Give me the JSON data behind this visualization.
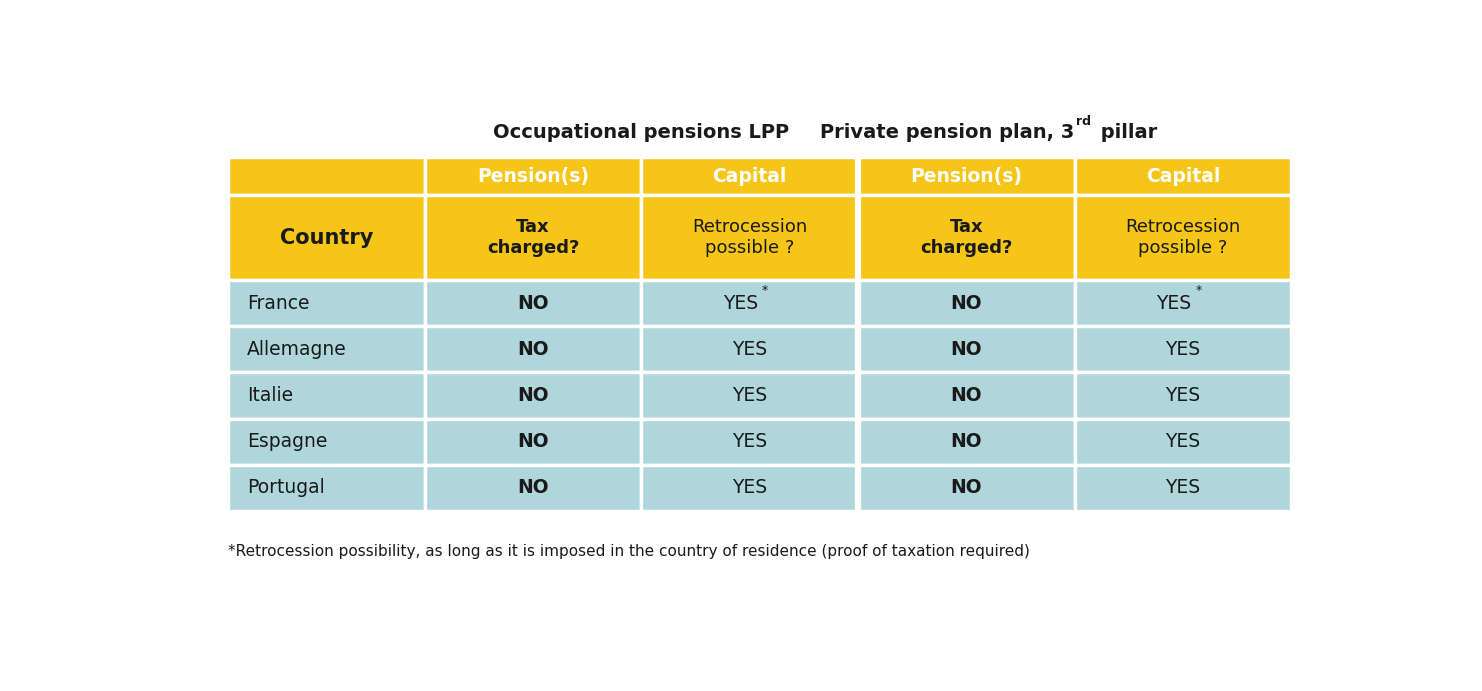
{
  "title_left": "Occupational pensions LPP",
  "title_right_base": "Private pension plan, 3",
  "title_right_sup": "rd",
  "title_right_end": " pillar",
  "col_headers": [
    "Pension(s)",
    "Capital",
    "Pension(s)",
    "Capital"
  ],
  "row_header_col0": "Country",
  "row_subheaders": [
    "Tax\ncharged?",
    "Retrocession\npossible ?",
    "Tax\ncharged?",
    "Retrocession\npossible ?"
  ],
  "row_subheaders_bold": [
    true,
    false,
    true,
    false
  ],
  "countries": [
    "France",
    "Allemagne",
    "Italie",
    "Espagne",
    "Portugal"
  ],
  "data": [
    [
      "NO",
      "YES*",
      "NO",
      "YES*"
    ],
    [
      "NO",
      "YES",
      "NO",
      "YES"
    ],
    [
      "NO",
      "YES",
      "NO",
      "YES"
    ],
    [
      "NO",
      "YES",
      "NO",
      "YES"
    ],
    [
      "NO",
      "YES",
      "NO",
      "YES"
    ]
  ],
  "data_bold": [
    true,
    false,
    true,
    false
  ],
  "footnote": "*Retrocession possibility, as long as it is imposed in the country of residence (proof of taxation required)",
  "color_yellow": "#F5C518",
  "color_light_blue": "#AED6DB",
  "color_white": "#FFFFFF",
  "color_black": "#1a1a1a",
  "background_color": "#FFFFFF",
  "fig_width": 14.82,
  "fig_height": 6.91,
  "dpi": 100
}
